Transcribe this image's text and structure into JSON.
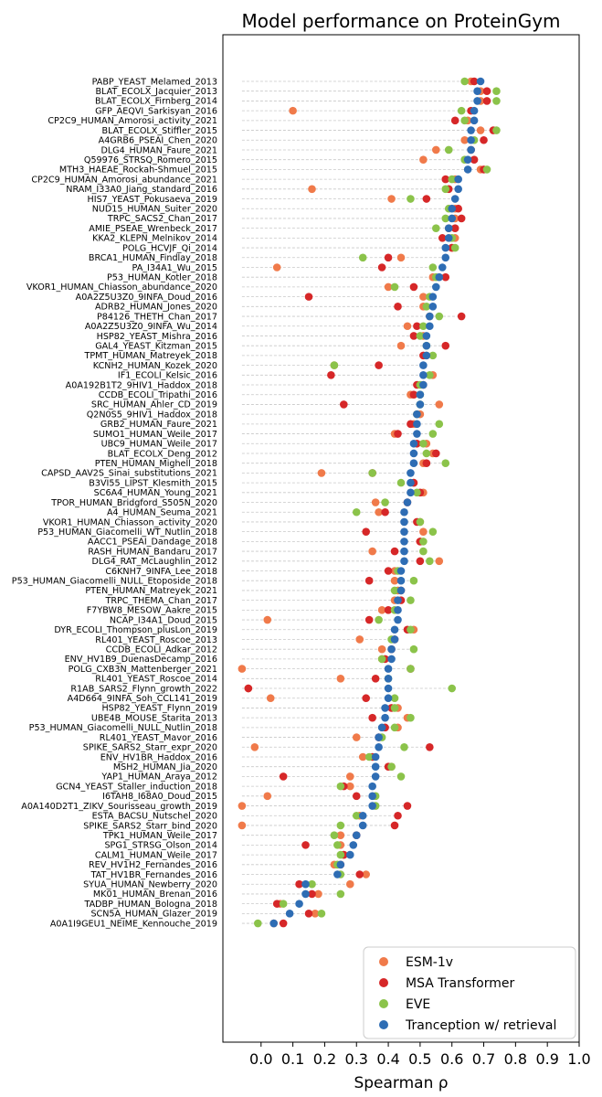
{
  "chart_data": {
    "type": "scatter",
    "title": "Model performance on ProteinGym",
    "xlabel": "Spearman ρ",
    "ylabel": "",
    "xlim": [
      -0.12,
      1.0
    ],
    "xticks": [
      "0.0",
      "0.1",
      "0.2",
      "0.3",
      "0.4",
      "0.5",
      "0.6",
      "0.7",
      "0.8",
      "0.9",
      "1.0"
    ],
    "legend_position": "bottom-right",
    "series": [
      {
        "name": "ESM-1v",
        "color": "#f07a4a"
      },
      {
        "name": "MSA Transformer",
        "color": "#d62728"
      },
      {
        "name": "EVE",
        "color": "#8bc34a"
      },
      {
        "name": "Tranception w/ retrieval",
        "color": "#2e6db4"
      }
    ],
    "rows": [
      {
        "label": "PABP_YEAST_Melamed_2013",
        "values": [
          0.66,
          0.67,
          0.64,
          0.69
        ]
      },
      {
        "label": "BLAT_ECOLX_Jacquier_2013",
        "values": [
          0.69,
          0.71,
          0.74,
          0.68
        ]
      },
      {
        "label": "BLAT_ECOLX_Firnberg_2014",
        "values": [
          0.69,
          0.71,
          0.74,
          0.68
        ]
      },
      {
        "label": "GFP_AEQVI_Sarkisyan_2016",
        "values": [
          0.1,
          0.66,
          0.63,
          0.67
        ]
      },
      {
        "label": "CP2C9_HUMAN_Amorosi_activity_2021",
        "values": [
          0.65,
          0.61,
          0.64,
          0.67
        ]
      },
      {
        "label": "BLAT_ECOLX_Stiffler_2015",
        "values": [
          0.69,
          0.73,
          0.74,
          0.66
        ]
      },
      {
        "label": "A4GRB6_PSEAI_Chen_2020",
        "values": [
          0.64,
          0.7,
          0.67,
          0.66
        ]
      },
      {
        "label": "DLG4_HUMAN_Faure_2021",
        "values": [
          0.55,
          0.66,
          0.59,
          0.66
        ]
      },
      {
        "label": "Q59976_STRSQ_Romero_2015",
        "values": [
          0.51,
          0.67,
          0.64,
          0.65
        ]
      },
      {
        "label": "MTH3_HAEAE_Rockah-Shmuel_2015",
        "values": [
          0.69,
          0.7,
          0.71,
          0.65
        ]
      },
      {
        "label": "CP2C9_HUMAN_Amorosi_abundance_2021",
        "values": [
          0.61,
          0.58,
          0.6,
          0.62
        ]
      },
      {
        "label": "NRAM_I33A0_Jiang_standard_2016",
        "values": [
          0.16,
          0.59,
          0.58,
          0.62
        ]
      },
      {
        "label": "HIS7_YEAST_Pokusaeva_2019",
        "values": [
          0.41,
          0.52,
          0.47,
          0.61
        ]
      },
      {
        "label": "NUD15_HUMAN_Suiter_2020",
        "values": [
          0.61,
          0.62,
          0.59,
          0.6
        ]
      },
      {
        "label": "TRPC_SACS2_Chan_2017",
        "values": [
          0.61,
          0.63,
          0.58,
          0.6
        ]
      },
      {
        "label": "AMIE_PSEAE_Wrenbeck_2017",
        "values": [
          0.59,
          0.61,
          0.55,
          0.59
        ]
      },
      {
        "label": "KKA2_KLEPN_Melnikov_2014",
        "values": [
          0.61,
          0.57,
          0.6,
          0.59
        ]
      },
      {
        "label": "POLG_HCVJF_Qi_2014",
        "values": [
          0.6,
          0.6,
          0.61,
          0.58
        ]
      },
      {
        "label": "BRCA1_HUMAN_Findlay_2018",
        "values": [
          0.44,
          0.4,
          0.32,
          0.58
        ]
      },
      {
        "label": "PA_I34A1_Wu_2015",
        "values": [
          0.05,
          0.38,
          0.54,
          0.57
        ]
      },
      {
        "label": "P53_HUMAN_Kotler_2018",
        "values": [
          0.54,
          0.58,
          0.55,
          0.56
        ]
      },
      {
        "label": "VKOR1_HUMAN_Chiasson_abundance_2020",
        "values": [
          0.4,
          0.48,
          0.42,
          0.55
        ]
      },
      {
        "label": "A0A2Z5U3Z0_9INFA_Doud_2016",
        "values": [
          0.51,
          0.15,
          0.53,
          0.54
        ]
      },
      {
        "label": "ADRB2_HUMAN_Jones_2020",
        "values": [
          0.51,
          0.43,
          0.52,
          0.54
        ]
      },
      {
        "label": "P84126_THETH_Chan_2017",
        "values": [
          0.53,
          0.63,
          0.56,
          0.53
        ]
      },
      {
        "label": "A0A2Z5U3Z0_9INFA_Wu_2014",
        "values": [
          0.46,
          0.49,
          0.51,
          0.53
        ]
      },
      {
        "label": "HSP82_YEAST_Mishra_2016",
        "values": [
          0.51,
          0.48,
          0.5,
          0.52
        ]
      },
      {
        "label": "GAL4_YEAST_Kitzman_2015",
        "values": [
          0.44,
          0.58,
          0.52,
          0.52
        ]
      },
      {
        "label": "TPMT_HUMAN_Matreyek_2018",
        "values": [
          0.52,
          0.51,
          0.54,
          0.52
        ]
      },
      {
        "label": "KCNH2_HUMAN_Kozek_2020",
        "values": [
          0.23,
          0.37,
          0.23,
          0.51
        ]
      },
      {
        "label": "IF1_ECOLI_Kelsic_2016",
        "values": [
          0.54,
          0.22,
          0.53,
          0.51
        ]
      },
      {
        "label": "A0A192B1T2_9HIV1_Haddox_2018",
        "values": [
          0.51,
          0.49,
          0.5,
          0.51
        ]
      },
      {
        "label": "CCDB_ECOLI_Tripathi_2016",
        "values": [
          0.47,
          0.48,
          0.5,
          0.5
        ]
      },
      {
        "label": "SRC_HUMAN_Ahler_CD_2019",
        "values": [
          0.56,
          0.26,
          0.5,
          0.5
        ]
      },
      {
        "label": "Q2N0S5_9HIV1_Haddox_2018",
        "values": [
          0.5,
          0.49,
          0.49,
          0.49
        ]
      },
      {
        "label": "GRB2_HUMAN_Faure_2021",
        "values": [
          0.48,
          0.47,
          0.56,
          0.49
        ]
      },
      {
        "label": "SUMO1_HUMAN_Weile_2017",
        "values": [
          0.42,
          0.43,
          0.54,
          0.49
        ]
      },
      {
        "label": "UBC9_HUMAN_Weile_2017",
        "values": [
          0.52,
          0.49,
          0.51,
          0.48
        ]
      },
      {
        "label": "BLAT_ECOLX_Deng_2012",
        "values": [
          0.54,
          0.55,
          0.52,
          0.48
        ]
      },
      {
        "label": "PTEN_HUMAN_Mighell_2018",
        "values": [
          0.51,
          0.52,
          0.58,
          0.48
        ]
      },
      {
        "label": "CAPSD_AAV2S_Sinai_substitutions_2021",
        "values": [
          0.19,
          0.35,
          0.35,
          0.47
        ]
      },
      {
        "label": "B3VI55_LIPST_Klesmith_2015",
        "values": [
          0.48,
          0.48,
          0.44,
          0.47
        ]
      },
      {
        "label": "SC6A4_HUMAN_Young_2021",
        "values": [
          0.51,
          0.5,
          0.49,
          0.47
        ]
      },
      {
        "label": "TPOR_HUMAN_Bridgford_S505N_2020",
        "values": [
          0.36,
          0.46,
          0.39,
          0.46
        ]
      },
      {
        "label": "A4_HUMAN_Seuma_2021",
        "values": [
          0.37,
          0.39,
          0.3,
          0.45
        ]
      },
      {
        "label": "VKOR1_HUMAN_Chiasson_activity_2020",
        "values": [
          0.5,
          0.49,
          0.5,
          0.45
        ]
      },
      {
        "label": "P53_HUMAN_Giacomelli_WT_Nutlin_2018",
        "values": [
          0.51,
          0.33,
          0.54,
          0.45
        ]
      },
      {
        "label": "AACC1_PSEAI_Dandage_2018",
        "values": [
          0.5,
          0.5,
          0.51,
          0.45
        ]
      },
      {
        "label": "RASH_HUMAN_Bandaru_2017",
        "values": [
          0.35,
          0.42,
          0.51,
          0.45
        ]
      },
      {
        "label": "DLG4_RAT_McLaughlin_2012",
        "values": [
          0.56,
          0.5,
          0.53,
          0.45
        ]
      },
      {
        "label": "C6KNH7_9INFA_Lee_2018",
        "values": [
          0.42,
          0.4,
          0.43,
          0.44
        ]
      },
      {
        "label": "P53_HUMAN_Giacomelli_NULL_Etoposide_2018",
        "values": [
          0.42,
          0.34,
          0.48,
          0.44
        ]
      },
      {
        "label": "PTEN_HUMAN_Matreyek_2021",
        "values": [
          0.43,
          0.44,
          0.42,
          0.44
        ]
      },
      {
        "label": "TRPC_THEMA_Chan_2017",
        "values": [
          0.42,
          0.44,
          0.47,
          0.43
        ]
      },
      {
        "label": "F7YBW8_MESOW_Aakre_2015",
        "values": [
          0.38,
          0.4,
          0.42,
          0.43
        ]
      },
      {
        "label": "NCAP_I34A1_Doud_2015",
        "values": [
          0.02,
          0.34,
          0.37,
          0.43
        ]
      },
      {
        "label": "DYR_ECOLI_Thompson_plusLon_2019",
        "values": [
          0.48,
          0.46,
          0.47,
          0.42
        ]
      },
      {
        "label": "RL401_YEAST_Roscoe_2013",
        "values": [
          0.31,
          0.42,
          0.41,
          0.42
        ]
      },
      {
        "label": "CCDB_ECOLI_Adkar_2012",
        "values": [
          0.38,
          0.41,
          0.48,
          0.41
        ]
      },
      {
        "label": "ENV_HV1B9_DuenasDecamp_2016",
        "values": [
          0.38,
          0.39,
          0.38,
          0.41
        ]
      },
      {
        "label": "POLG_CXB3N_Mattenberger_2021",
        "values": [
          -0.06,
          0.47,
          0.47,
          0.4
        ]
      },
      {
        "label": "RL401_YEAST_Roscoe_2014",
        "values": [
          0.25,
          0.36,
          0.4,
          0.4
        ]
      },
      {
        "label": "R1AB_SARS2_Flynn_growth_2022",
        "values": [
          -0.04,
          -0.04,
          0.6,
          0.4
        ]
      },
      {
        "label": "A4D664_9INFA_Soh_CCL141_2019",
        "values": [
          0.03,
          0.33,
          0.42,
          0.4
        ]
      },
      {
        "label": "HSP82_YEAST_Flynn_2019",
        "values": [
          0.43,
          0.41,
          0.42,
          0.39
        ]
      },
      {
        "label": "UBE4B_MOUSE_Starita_2013",
        "values": [
          0.46,
          0.35,
          0.47,
          0.39
        ]
      },
      {
        "label": "P53_HUMAN_Giacomelli_NULL_Nutlin_2018",
        "values": [
          0.43,
          0.39,
          0.42,
          0.38
        ]
      },
      {
        "label": "RL401_YEAST_Mavor_2016",
        "values": [
          0.3,
          0.37,
          0.38,
          0.37
        ]
      },
      {
        "label": "SPIKE_SARS2_Starr_expr_2020",
        "values": [
          -0.02,
          0.53,
          0.45,
          0.37
        ]
      },
      {
        "label": "ENV_HV1BR_Haddox_2016",
        "values": [
          0.32,
          0.35,
          0.34,
          0.36
        ]
      },
      {
        "label": "MSH2_HUMAN_Jia_2020",
        "values": [
          0.41,
          0.4,
          0.41,
          0.36
        ]
      },
      {
        "label": "YAP1_HUMAN_Araya_2012",
        "values": [
          0.28,
          0.07,
          0.44,
          0.36
        ]
      },
      {
        "label": "GCN4_YEAST_Staller_induction_2018",
        "values": [
          0.28,
          0.26,
          0.25,
          0.35
        ]
      },
      {
        "label": "I6TAH8_I68A0_Doud_2015",
        "values": [
          0.02,
          0.3,
          0.36,
          0.35
        ]
      },
      {
        "label": "A0A140D2T1_ZIKV_Sourisseau_growth_2019",
        "values": [
          -0.06,
          0.46,
          0.36,
          0.35
        ]
      },
      {
        "label": "ESTA_BACSU_Nutschel_2020",
        "values": [
          0.31,
          0.43,
          0.3,
          0.32
        ]
      },
      {
        "label": "SPIKE_SARS2_Starr_bind_2020",
        "values": [
          -0.06,
          0.42,
          0.25,
          0.32
        ]
      },
      {
        "label": "TPK1_HUMAN_Weile_2017",
        "values": [
          0.25,
          0.3,
          0.23,
          0.3
        ]
      },
      {
        "label": "SPG1_STRSG_Olson_2014",
        "values": [
          0.25,
          0.14,
          0.24,
          0.29
        ]
      },
      {
        "label": "CALM1_HUMAN_Weile_2017",
        "values": [
          0.26,
          0.26,
          0.25,
          0.28
        ]
      },
      {
        "label": "REV_HV1H2_Fernandes_2016",
        "values": [
          0.23,
          0.25,
          0.24,
          0.25
        ]
      },
      {
        "label": "TAT_HV1BR_Fernandes_2016",
        "values": [
          0.33,
          0.31,
          0.25,
          0.24
        ]
      },
      {
        "label": "SYUA_HUMAN_Newberry_2020",
        "values": [
          0.28,
          0.12,
          0.16,
          0.14
        ]
      },
      {
        "label": "MK01_HUMAN_Brenan_2016",
        "values": [
          0.18,
          0.16,
          0.25,
          0.14
        ]
      },
      {
        "label": "TADBP_HUMAN_Bologna_2018",
        "values": [
          0.06,
          0.05,
          0.07,
          0.12
        ]
      },
      {
        "label": "SCN5A_HUMAN_Glazer_2019",
        "values": [
          0.17,
          0.15,
          0.19,
          0.09
        ]
      },
      {
        "label": "A0A1I9GEU1_NEIME_Kennouche_2019",
        "values": [
          0.04,
          0.07,
          -0.01,
          0.04
        ]
      }
    ]
  }
}
